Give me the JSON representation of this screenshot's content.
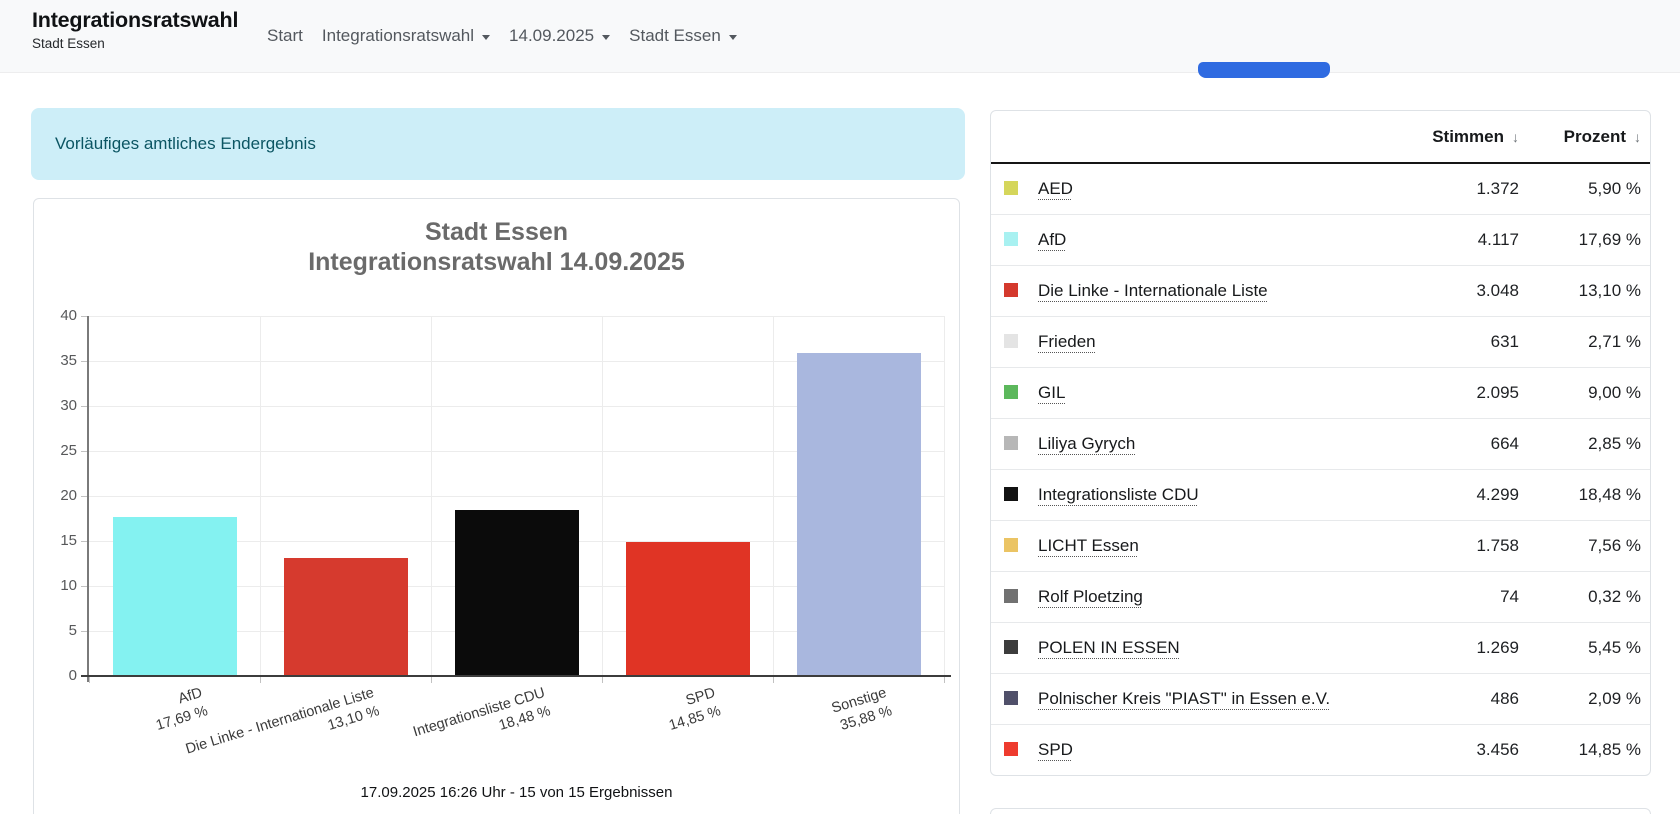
{
  "header": {
    "title": "Integrationsratswahl",
    "subtitle": "Stadt Essen",
    "nav": [
      {
        "label": "Start",
        "dropdown": false
      },
      {
        "label": "Integrationsratswahl",
        "dropdown": true
      },
      {
        "label": "14.09.2025",
        "dropdown": true
      },
      {
        "label": "Stadt Essen",
        "dropdown": true
      }
    ]
  },
  "banner": {
    "text": "Vorläufiges amtliches Endergebnis"
  },
  "chart_data": {
    "type": "bar",
    "title_lines": [
      "Stadt Essen",
      "Integrationsratswahl 14.09.2025"
    ],
    "categories": [
      "AfD",
      "Die Linke - Internationale Liste",
      "Integrationsliste CDU",
      "SPD",
      "Sonstige"
    ],
    "values": [
      17.69,
      13.1,
      18.48,
      14.85,
      35.88
    ],
    "value_labels": [
      "17,69 %",
      "13,10 %",
      "18,48 %",
      "14,85 %",
      "35,88 %"
    ],
    "bar_colors": [
      "#84f2f1",
      "#d63a2e",
      "#0b0b0b",
      "#e03425",
      "#a9b7de"
    ],
    "ylim": [
      0,
      40
    ],
    "yticks": [
      0,
      5,
      10,
      15,
      20,
      25,
      30,
      35,
      40
    ],
    "grid": true,
    "legend": "none",
    "footnote": "17.09.2025 16:26 Uhr - 15 von 15 Ergebnissen"
  },
  "table": {
    "columns": [
      {
        "label": "Stimmen",
        "sort_icon": "↓"
      },
      {
        "label": "Prozent",
        "sort_icon": "↓"
      }
    ],
    "rows": [
      {
        "party": "AED",
        "color": "#d5d65b",
        "stimmen": "1.372",
        "prozent": "5,90 %"
      },
      {
        "party": "AfD",
        "color": "#a8f1f1",
        "stimmen": "4.117",
        "prozent": "17,69 %"
      },
      {
        "party": "Die Linke - Internationale Liste",
        "color": "#d4392d",
        "stimmen": "3.048",
        "prozent": "13,10 %"
      },
      {
        "party": "Frieden",
        "color": "#e4e4e4",
        "stimmen": "631",
        "prozent": "2,71 %"
      },
      {
        "party": "GIL",
        "color": "#5cb85c",
        "stimmen": "2.095",
        "prozent": "9,00 %"
      },
      {
        "party": "Liliya Gyrych",
        "color": "#b7b7b7",
        "stimmen": "664",
        "prozent": "2,85 %"
      },
      {
        "party": "Integrationsliste CDU",
        "color": "#121212",
        "stimmen": "4.299",
        "prozent": "18,48 %"
      },
      {
        "party": "LICHT Essen",
        "color": "#ebc464",
        "stimmen": "1.758",
        "prozent": "7,56 %"
      },
      {
        "party": "Rolf Ploetzing",
        "color": "#717171",
        "stimmen": "74",
        "prozent": "0,32 %"
      },
      {
        "party": "POLEN IN ESSEN",
        "color": "#3c3c3c",
        "stimmen": "1.269",
        "prozent": "5,45 %"
      },
      {
        "party": "Polnischer Kreis \"PIAST\" in Essen e.V.",
        "color": "#50506a",
        "stimmen": "486",
        "prozent": "2,09 %"
      },
      {
        "party": "SPD",
        "color": "#ee3b2e",
        "stimmen": "3.456",
        "prozent": "14,85 %"
      }
    ]
  },
  "colors": {
    "primary": "#2f6be1",
    "header_bg": "#f8f9fa",
    "banner_bg": "#cdeef8",
    "banner_text": "#0b5563",
    "card_border": "#dee2e6",
    "grid_line": "#ececec",
    "axis": "#3c3c3c"
  }
}
